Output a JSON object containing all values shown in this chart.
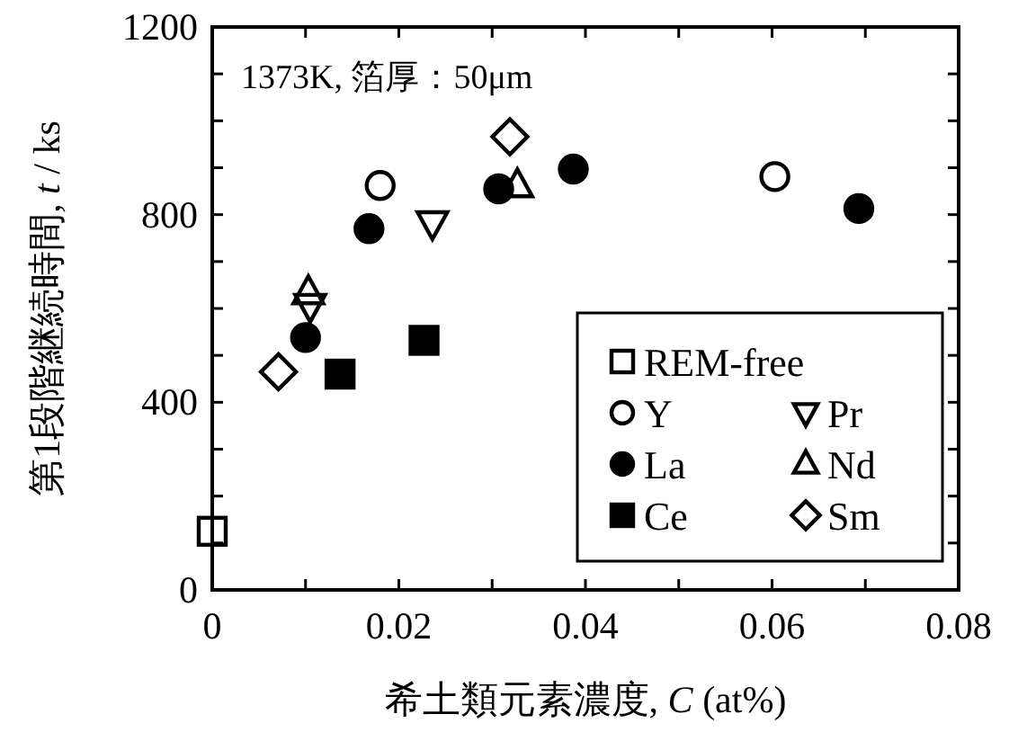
{
  "chart_data": {
    "type": "scatter",
    "xlabel": "希土類元素濃度, *C* (at%)",
    "ylabel": "第1段階継続時間, *t* / ks",
    "annotations": [
      "1373K, 箔厚：50μm"
    ],
    "xlim": [
      0,
      0.08
    ],
    "ylim": [
      0,
      1200
    ],
    "xticks": [
      0,
      {
        "value": 0.01,
        "label": null
      },
      0.02,
      {
        "value": 0.03,
        "label": null
      },
      0.04,
      {
        "value": 0.05,
        "label": null
      },
      0.06,
      {
        "value": 0.07,
        "label": null
      },
      0.08
    ],
    "yticks": [
      0,
      {
        "value": 100,
        "label": null
      },
      {
        "value": 200,
        "label": null
      },
      {
        "value": 300,
        "label": null
      },
      400,
      {
        "value": 500,
        "label": null
      },
      {
        "value": 600,
        "label": null
      },
      {
        "value": 700,
        "label": null
      },
      800,
      {
        "value": 900,
        "label": null
      },
      {
        "value": 1000,
        "label": null
      },
      {
        "value": 1100,
        "label": null
      },
      1200
    ],
    "grid": false,
    "legend": "bottom right",
    "series": [
      {
        "name": "REM-free",
        "marker": "square-open",
        "color": "#000000",
        "x": [
          0
        ],
        "values": [
          125
        ]
      },
      {
        "name": "Y",
        "marker": "circle-open",
        "color": "#000000",
        "x": [
          0.018,
          0.0603
        ],
        "values": [
          862,
          881
        ]
      },
      {
        "name": "La",
        "marker": "circle",
        "color": "#000000",
        "x": [
          0.01,
          0.0168,
          0.0307,
          0.0387,
          0.0693
        ],
        "values": [
          538,
          770,
          855,
          897,
          813
        ]
      },
      {
        "name": "Ce",
        "marker": "square",
        "color": "#000000",
        "x": [
          0.0137,
          0.0227
        ],
        "values": [
          460,
          532
        ]
      },
      {
        "name": "Pr",
        "marker": "triangle-down-open",
        "color": "#000000",
        "x": [
          0.0105,
          0.0236
        ],
        "values": [
          606,
          782
        ]
      },
      {
        "name": "Nd",
        "marker": "triangle-open",
        "color": "#000000",
        "x": [
          0.0103,
          0.0327
        ],
        "values": [
          634,
          862
        ]
      },
      {
        "name": "Sm",
        "marker": "diamond-open",
        "color": "#000000",
        "x": [
          0.0071,
          0.0319
        ],
        "values": [
          465,
          966
        ]
      }
    ]
  }
}
